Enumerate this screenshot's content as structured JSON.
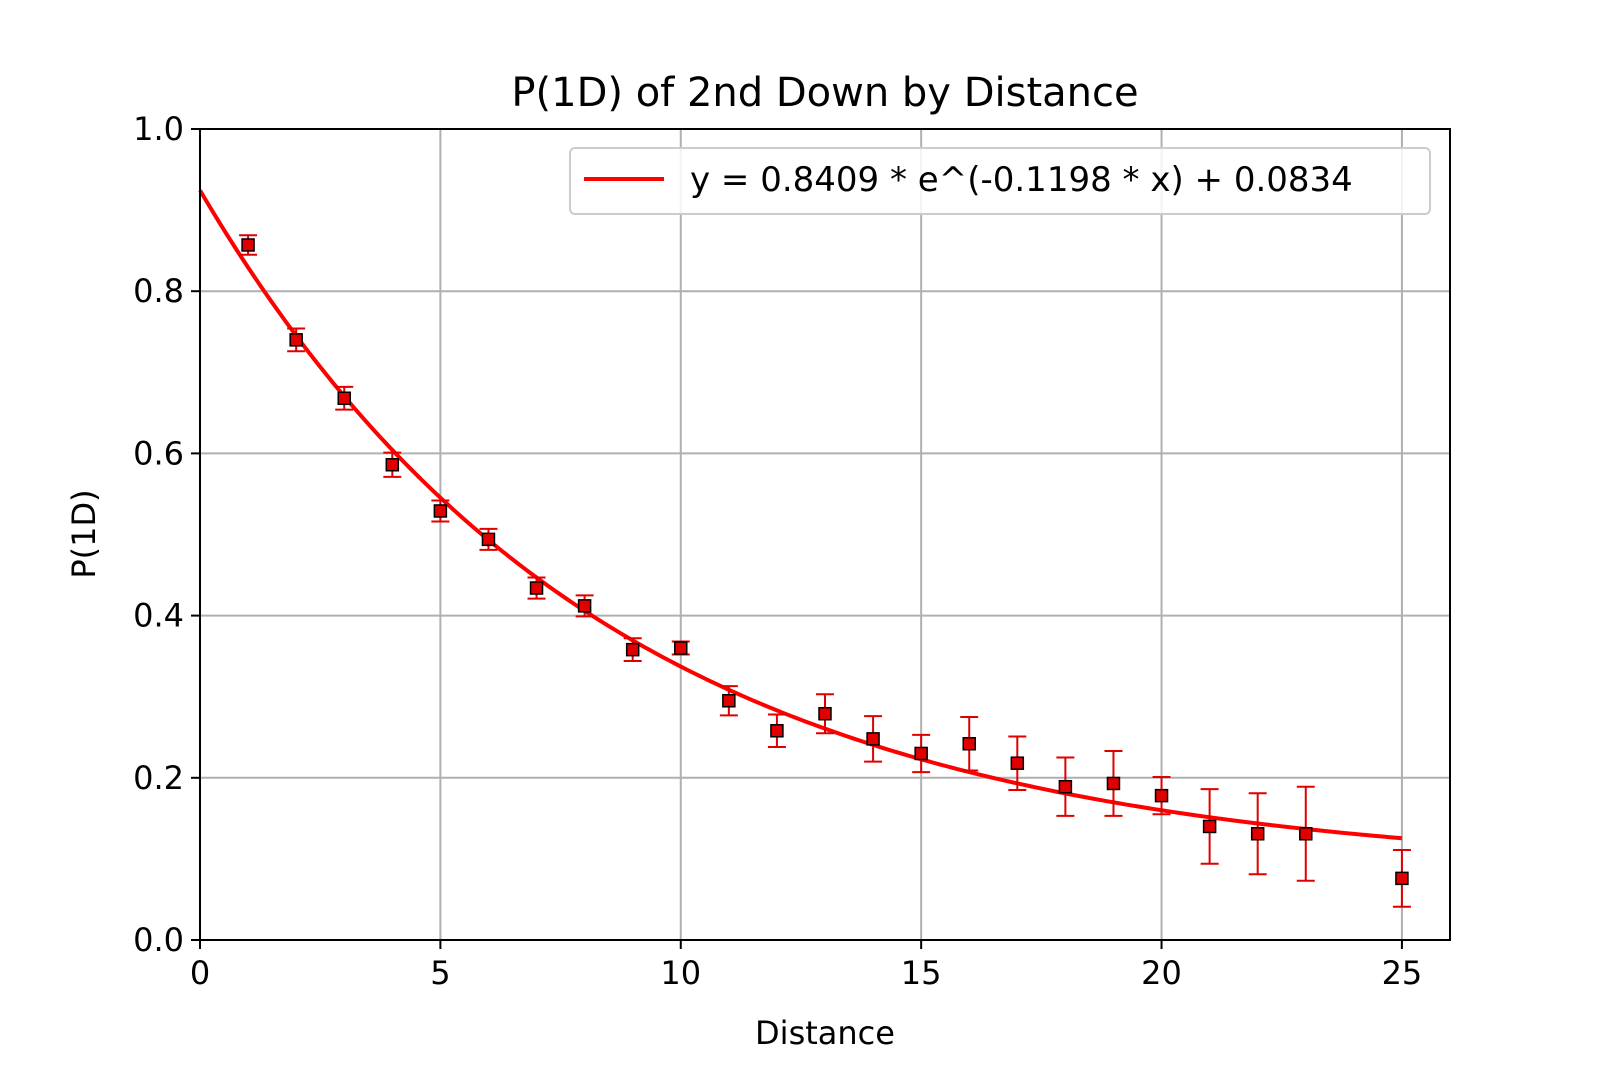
{
  "chart_data": {
    "type": "scatter",
    "title": "P(1D) of 2nd Down by Distance",
    "xlabel": "Distance",
    "ylabel": "P(1D)",
    "xlim": [
      0,
      26
    ],
    "ylim": [
      0,
      1.0
    ],
    "xticks": [
      0,
      5,
      10,
      15,
      20,
      25
    ],
    "xtick_labels": [
      "0",
      "5",
      "10",
      "15",
      "20",
      "25"
    ],
    "yticks": [
      0,
      0.2,
      0.4,
      0.6,
      0.8,
      1.0
    ],
    "ytick_labels": [
      "0.0",
      "0.2",
      "0.4",
      "0.6",
      "0.8",
      "1.0"
    ],
    "grid": true,
    "legend_position": "top-right",
    "colors": {
      "points": "#e00000",
      "fit": "#ff0000",
      "grid": "#b0b0b0",
      "marker_edge": "#000000"
    },
    "points": {
      "x": [
        1,
        2,
        3,
        4,
        5,
        6,
        7,
        8,
        9,
        10,
        11,
        12,
        13,
        14,
        15,
        16,
        17,
        18,
        19,
        20,
        21,
        22,
        23,
        25
      ],
      "y": [
        0.857,
        0.74,
        0.668,
        0.586,
        0.529,
        0.494,
        0.434,
        0.412,
        0.358,
        0.36,
        0.295,
        0.258,
        0.279,
        0.248,
        0.23,
        0.242,
        0.218,
        0.189,
        0.193,
        0.178,
        0.14,
        0.131,
        0.131,
        0.076
      ],
      "err": [
        0.012,
        0.014,
        0.014,
        0.015,
        0.013,
        0.013,
        0.013,
        0.013,
        0.014,
        0.008,
        0.018,
        0.02,
        0.024,
        0.028,
        0.023,
        0.033,
        0.033,
        0.036,
        0.04,
        0.023,
        0.046,
        0.05,
        0.058,
        0.035
      ]
    },
    "fit": {
      "name": "y = 0.8409 * e^(-0.1198 * x) + 0.0834",
      "a": 0.8409,
      "b": -0.1198,
      "c": 0.0834,
      "x_range": [
        0,
        25
      ]
    }
  }
}
